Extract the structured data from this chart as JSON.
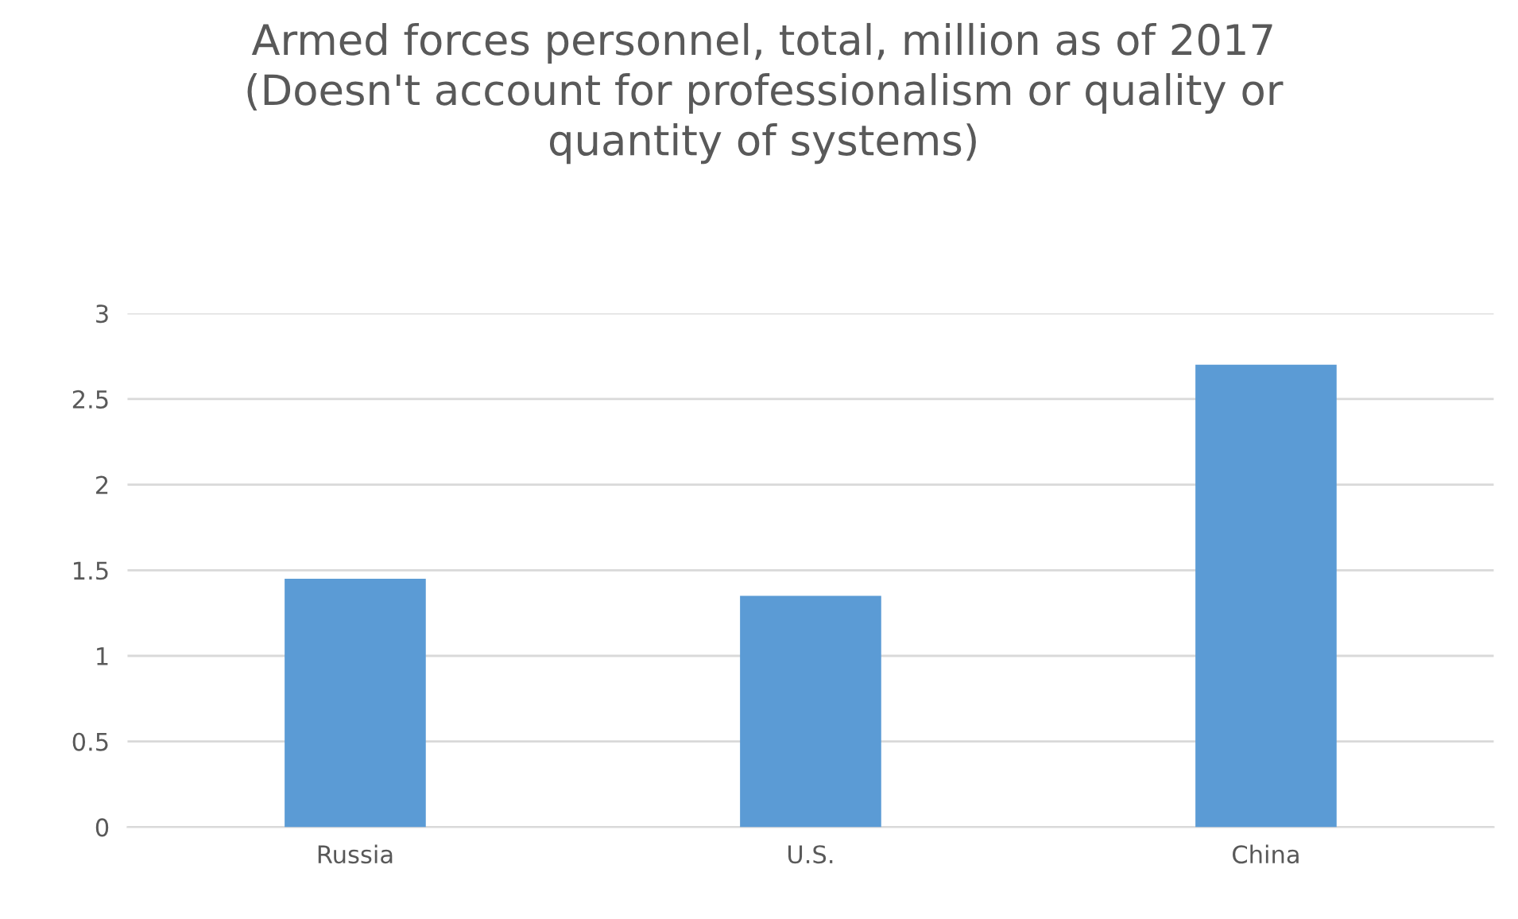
{
  "chart_data": {
    "type": "bar",
    "title": "Armed forces personnel, total, million as of 2017\n(Doesn't account for professionalism or quality or\nquantity of systems)",
    "categories": [
      "Russia",
      "U.S.",
      "China"
    ],
    "values": [
      1.45,
      1.35,
      2.7
    ],
    "color": "#5b9bd5",
    "ylim": [
      0,
      3
    ],
    "yticks": [
      0,
      0.5,
      1,
      1.5,
      2,
      2.5,
      3
    ],
    "grid": "y",
    "legend": false
  }
}
